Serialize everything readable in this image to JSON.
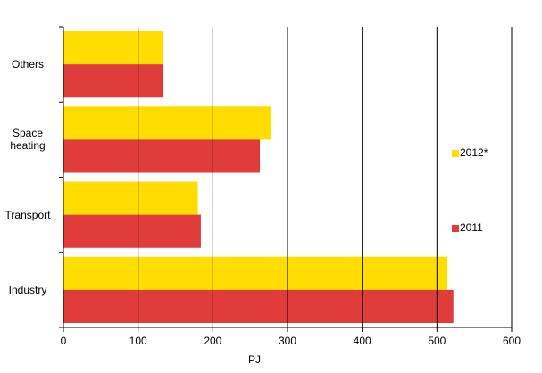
{
  "chart_data": {
    "type": "hbar",
    "x_label": "PJ",
    "categories": [
      "Others",
      "Space heating",
      "Transport",
      "Industry"
    ],
    "series": [
      {
        "name": "2012*",
        "color": "#ffdd00",
        "values": [
          134,
          278,
          180,
          514
        ]
      },
      {
        "name": "2011",
        "color": "#e03c3c",
        "values": [
          134,
          263,
          184,
          522
        ]
      }
    ],
    "xlim": [
      0,
      600
    ],
    "xticks": [
      0,
      100,
      200,
      300,
      400,
      500,
      600
    ],
    "grid": true,
    "legend": "right"
  }
}
